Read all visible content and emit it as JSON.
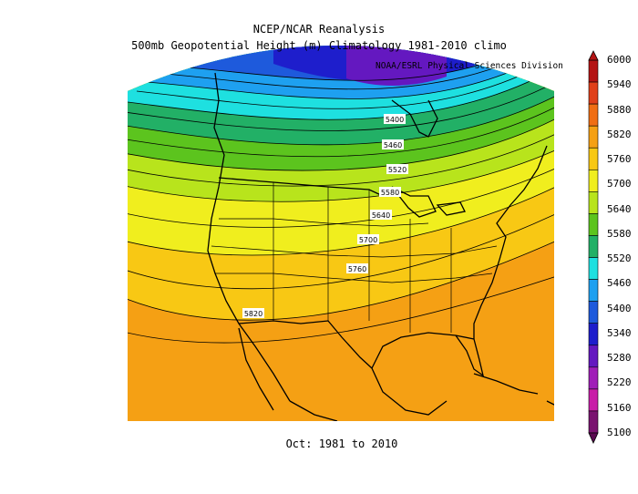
{
  "title": {
    "line1": "NCEP/NCAR Reanalysis",
    "line2": "500mb Geopotential Height (m) Climatology 1981-2010 climo"
  },
  "credit": "NOAA/ESRL Physical Sciences Division",
  "footer": "Oct: 1981 to 2010",
  "colorbar": {
    "levels": [
      "6000",
      "5940",
      "5880",
      "5820",
      "5760",
      "5700",
      "5640",
      "5580",
      "5520",
      "5460",
      "5400",
      "5340",
      "5280",
      "5220",
      "5160",
      "5100"
    ],
    "colors": [
      "#b41414",
      "#e0401a",
      "#f06e14",
      "#f5a014",
      "#f8c814",
      "#f0ee1e",
      "#b8e41c",
      "#5cc41e",
      "#22b066",
      "#1ee0e0",
      "#1ea0f0",
      "#1e5adc",
      "#1e1ecc",
      "#6418c0",
      "#a01eb8",
      "#c81ea8",
      "#7a1470"
    ]
  },
  "contour_labels": [
    "5400",
    "5460",
    "5520",
    "5580",
    "5640",
    "5700",
    "5760",
    "5820"
  ]
}
